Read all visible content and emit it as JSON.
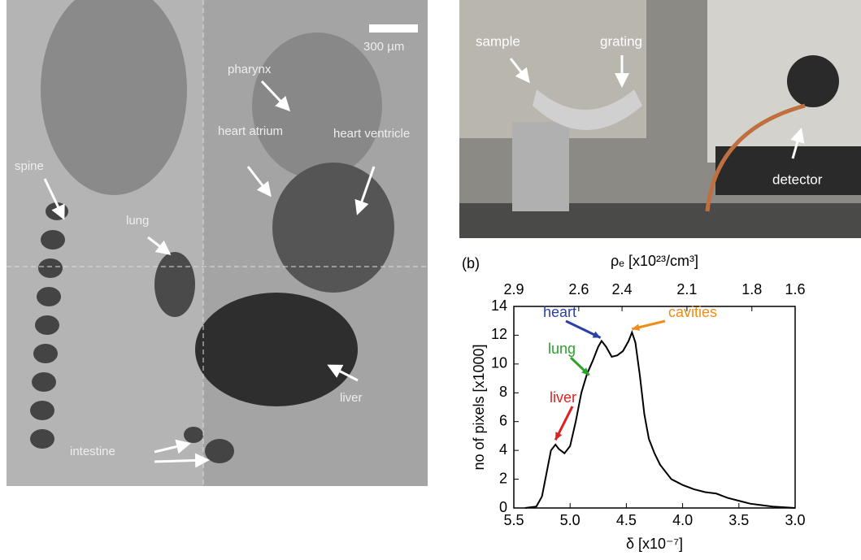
{
  "left_image": {
    "scale_bar": "300 µm",
    "labels": [
      "pharynx",
      "heart atrium",
      "heart ventricle",
      "spine",
      "lung",
      "liver",
      "intestine"
    ]
  },
  "photo": {
    "labels": [
      "sample",
      "grating",
      "detector"
    ]
  },
  "panel_label": "(b)",
  "chart_data": {
    "type": "line",
    "x_label": "δ [x10⁻⁷]",
    "y_label": "no of pixels [x1000]",
    "x2_label": "ρₑ [x10²³/cm³]",
    "xlim": [
      5.5,
      3.0
    ],
    "xticks": [
      5.5,
      {
        "value": 5.0,
        "label": "5.0"
      },
      4.5,
      {
        "value": 4.0,
        "label": "4.0"
      },
      3.5,
      {
        "value": 3.0,
        "label": "3.0"
      }
    ],
    "x2lim": [
      2.9,
      1.6
    ],
    "x2ticks": [
      2.9,
      2.6,
      2.4,
      2.1,
      1.8,
      1.6
    ],
    "ylim": [
      0,
      14
    ],
    "yticks": [
      0,
      2,
      4,
      6,
      8,
      10,
      12,
      14
    ],
    "series": [
      {
        "color": "#000000",
        "x": [
          5.4,
          5.3,
          5.25,
          5.2,
          5.17,
          5.13,
          5.1,
          5.05,
          5.0,
          4.95,
          4.9,
          4.85,
          4.8,
          4.75,
          4.72,
          4.68,
          4.63,
          4.58,
          4.53,
          4.48,
          4.45,
          4.42,
          4.38,
          4.34,
          4.3,
          4.25,
          4.2,
          4.1,
          4.0,
          3.9,
          3.8,
          3.7,
          3.6,
          3.5,
          3.4,
          3.3,
          3.2,
          3.0
        ],
        "values": [
          0,
          0.1,
          0.8,
          2.8,
          4.0,
          4.4,
          4.1,
          3.8,
          4.3,
          6.0,
          8.0,
          9.3,
          10.2,
          11.2,
          11.6,
          11.2,
          10.5,
          10.6,
          10.9,
          11.6,
          12.2,
          11.5,
          9.2,
          6.5,
          4.8,
          3.8,
          3.0,
          2.0,
          1.6,
          1.3,
          1.1,
          1.0,
          0.7,
          0.5,
          0.3,
          0.2,
          0.1,
          0
        ]
      }
    ],
    "annotations": [
      {
        "text": "heart",
        "color": "#2b3fa8"
      },
      {
        "text": "lung",
        "color": "#2ea02e"
      },
      {
        "text": "liver",
        "color": "#e02020"
      },
      {
        "text": "cavities",
        "color": "#f08c1a"
      }
    ]
  }
}
